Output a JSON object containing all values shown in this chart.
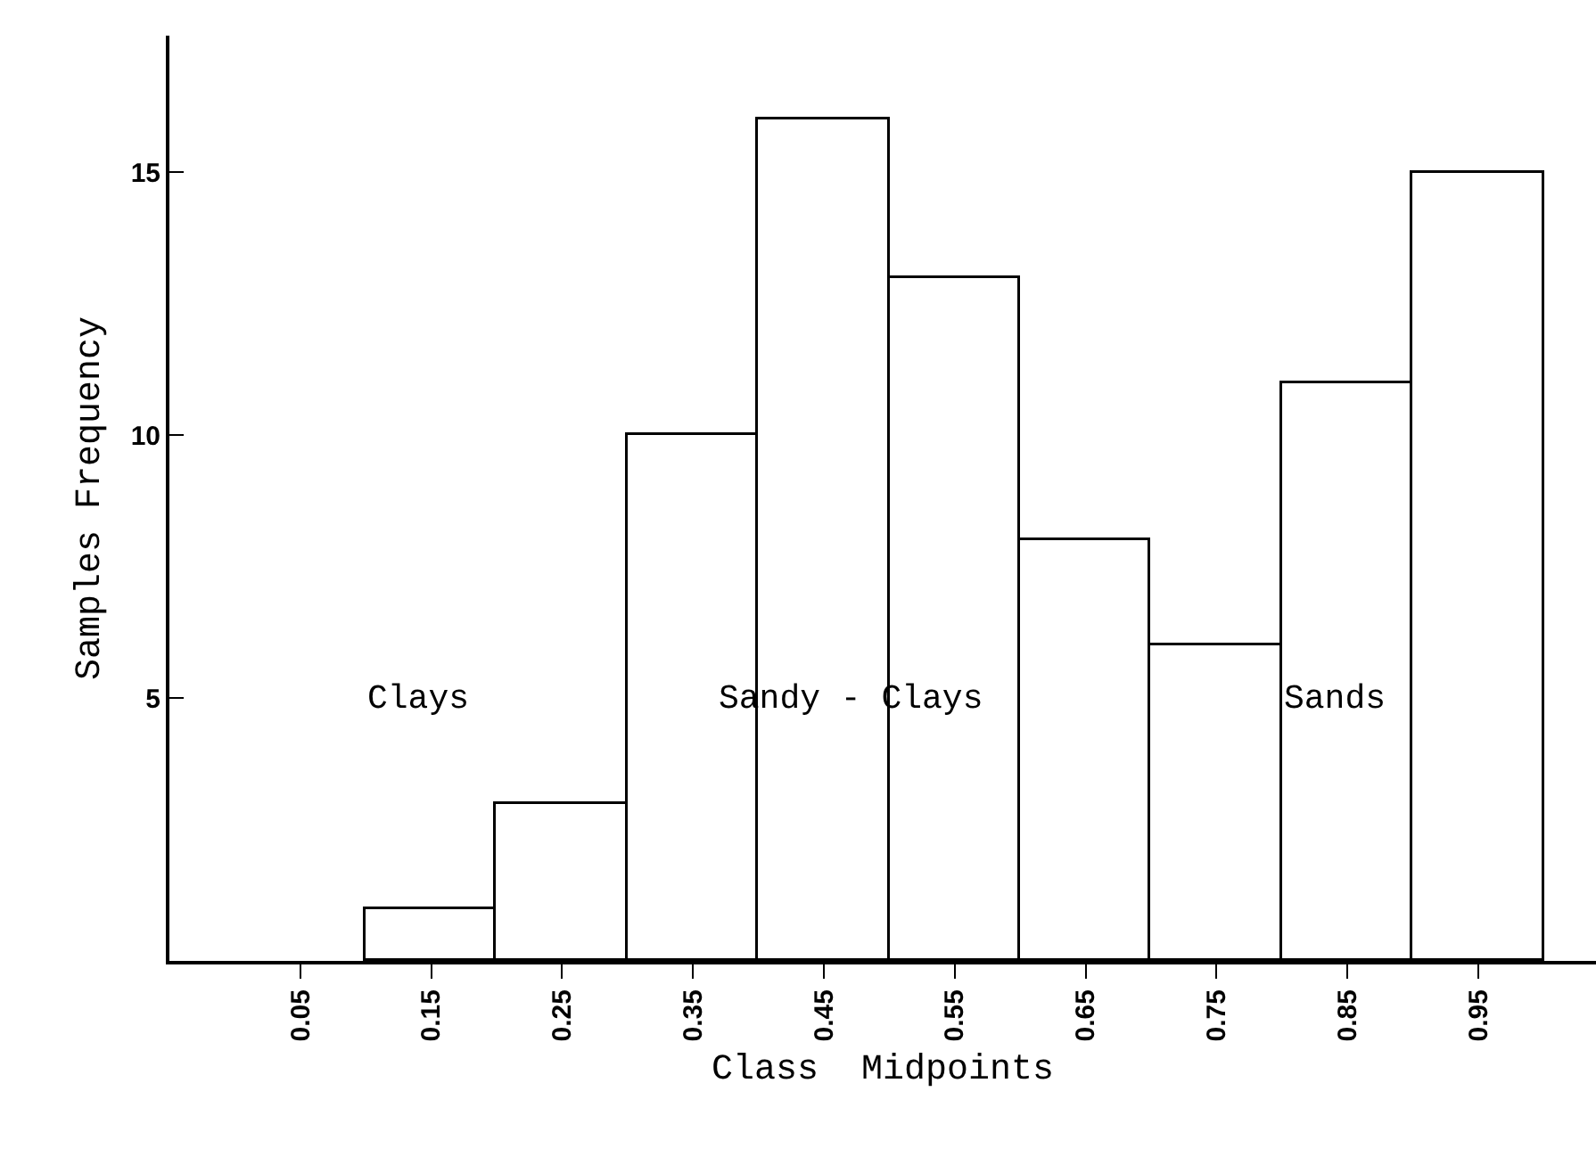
{
  "chart_data": {
    "type": "histogram",
    "xlabel": "Class  Midpoints",
    "ylabel": "Samples Frequency",
    "bins": [
      0,
      0.1,
      0.2,
      0.3,
      0.4,
      0.5,
      0.6,
      0.7,
      0.8,
      0.9,
      1.0
    ],
    "values": [
      0,
      1,
      3,
      10,
      16,
      13,
      8,
      6,
      11,
      15
    ],
    "color": "#ffffff",
    "xlim": [
      -0.05,
      1.04
    ],
    "xticks": [
      0.05,
      0.15,
      0.25,
      0.35,
      0.45,
      0.55,
      0.65,
      0.75,
      0.85,
      0.95
    ],
    "ylim": [
      0,
      17.6
    ],
    "yticks": [
      5,
      10,
      15
    ],
    "grid": false,
    "legend": false,
    "annotations": [
      "Clays",
      "Sandy - Clays",
      "Sands"
    ]
  }
}
